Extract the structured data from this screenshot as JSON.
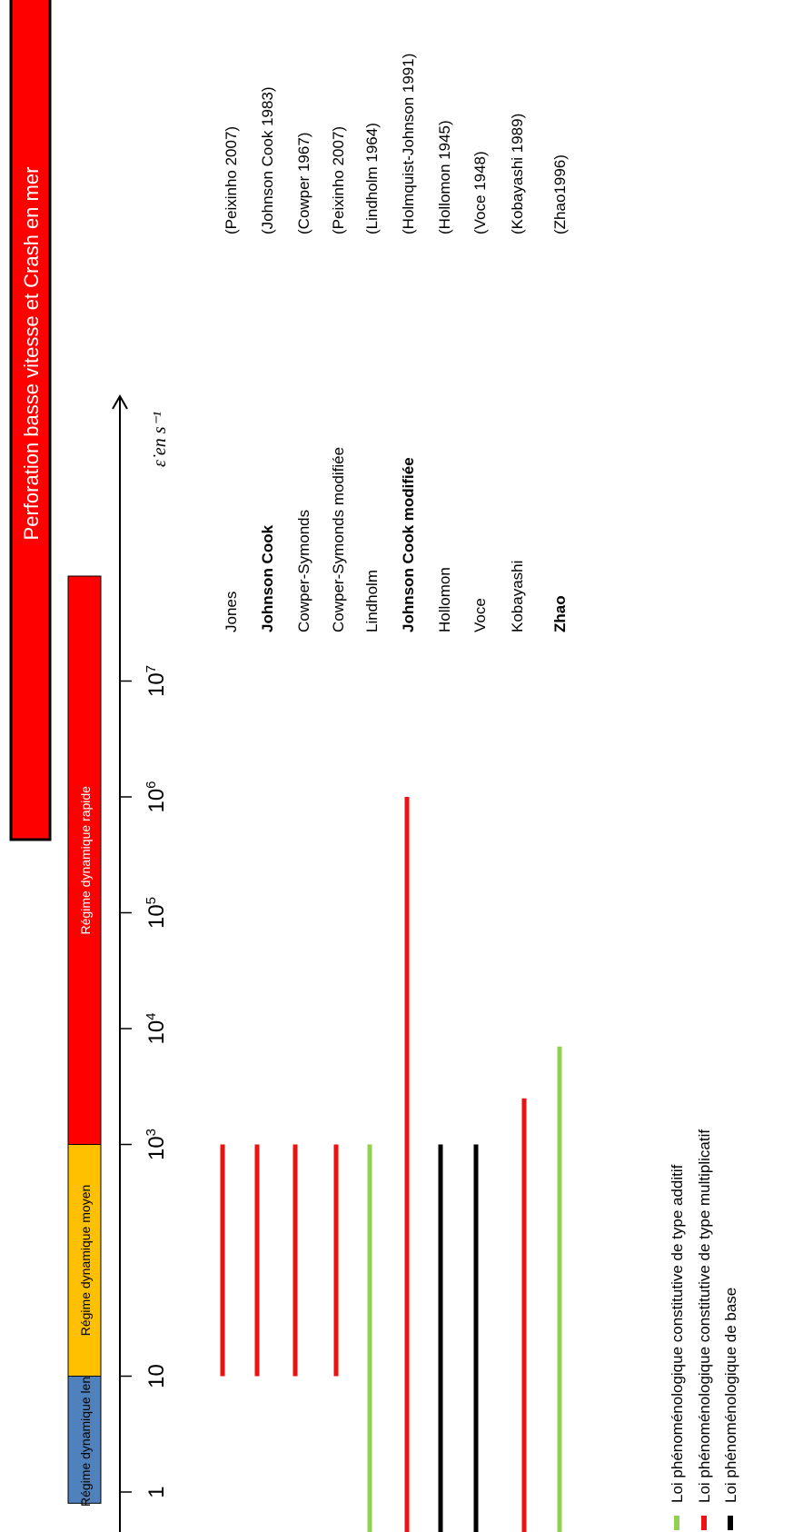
{
  "chart_data": {
    "type": "bar",
    "orientation": "horizontal",
    "rotated_page": true,
    "title": "Perforation basse vitesse et Crash en mer",
    "x_axis": {
      "label": "ε̇ en s⁻¹",
      "scale": "log",
      "ticks": [
        {
          "value": 1,
          "label": "1"
        },
        {
          "value": 10,
          "label": "10"
        },
        {
          "value": 1000,
          "label": "10³"
        },
        {
          "value": 10000,
          "label": "10⁴"
        },
        {
          "value": 100000,
          "label": "10⁵"
        },
        {
          "value": 1000000,
          "label": "10⁶"
        },
        {
          "value": 10000000,
          "label": "10⁷"
        }
      ]
    },
    "regimes": [
      {
        "label": "Régime dynamique lent",
        "from": 0.8,
        "to": 10,
        "color": "#4f81bd"
      },
      {
        "label": "Régime dynamique moyen",
        "from": 10,
        "to": 1000,
        "color": "#ffc000"
      },
      {
        "label": "Régime dynamique rapide",
        "from": 1000,
        "to": 100000000,
        "color": "#ff0000"
      }
    ],
    "laws": [
      {
        "name": "Jones",
        "bold": false,
        "ref": "(Peixinho  2007)",
        "from": 10,
        "to": 1000,
        "type": "multiplicatif"
      },
      {
        "name": "Johnson Cook",
        "bold": true,
        "ref": "(Johnson Cook 1983)",
        "from": 10,
        "to": 1000,
        "type": "multiplicatif"
      },
      {
        "name": "Cowper-Symonds",
        "bold": false,
        "ref": "(Cowper 1967)",
        "from": 10,
        "to": 1000,
        "type": "multiplicatif"
      },
      {
        "name": "Cowper-Symonds modifiée",
        "bold": false,
        "ref": "(Peixinho  2007)",
        "from": 10,
        "to": 1000,
        "type": "multiplicatif"
      },
      {
        "name": "Lindholm",
        "bold": false,
        "ref": "(Lindholm  1964)",
        "from": 0.8,
        "to": 1000,
        "type": "additif"
      },
      {
        "name": "Johnson Cook modifiée",
        "bold": true,
        "ref": "(Holmquist-Johnson  1991)",
        "from": 0.8,
        "to": 1000000,
        "type": "multiplicatif"
      },
      {
        "name": "Hollomon",
        "bold": false,
        "ref": "(Hollomon 1945)",
        "from": 0.8,
        "to": 1000,
        "type": "base"
      },
      {
        "name": "Voce",
        "bold": false,
        "ref": "(Voce 1948)",
        "from": 0.8,
        "to": 1000,
        "type": "base"
      },
      {
        "name": "Kobayashi",
        "bold": false,
        "ref": "(Kobayashi 1989)",
        "from": 0.8,
        "to": 2500,
        "type": "multiplicatif"
      },
      {
        "name": "Zhao",
        "bold": true,
        "ref": "(Zhao1996)",
        "from": 0.8,
        "to": 7000,
        "type": "additif"
      }
    ],
    "legend": [
      {
        "type": "additif",
        "label": "Loi phénoménologique  constitutive de type additif",
        "color": "#92d050"
      },
      {
        "type": "multiplicatif",
        "label": "Loi phénoménologique  constitutive de type multiplicatif",
        "color": "#ee1111"
      },
      {
        "type": "base",
        "label": "Loi phénoménologique  de base",
        "color": "#000000"
      }
    ],
    "legend_position": "bottom"
  }
}
